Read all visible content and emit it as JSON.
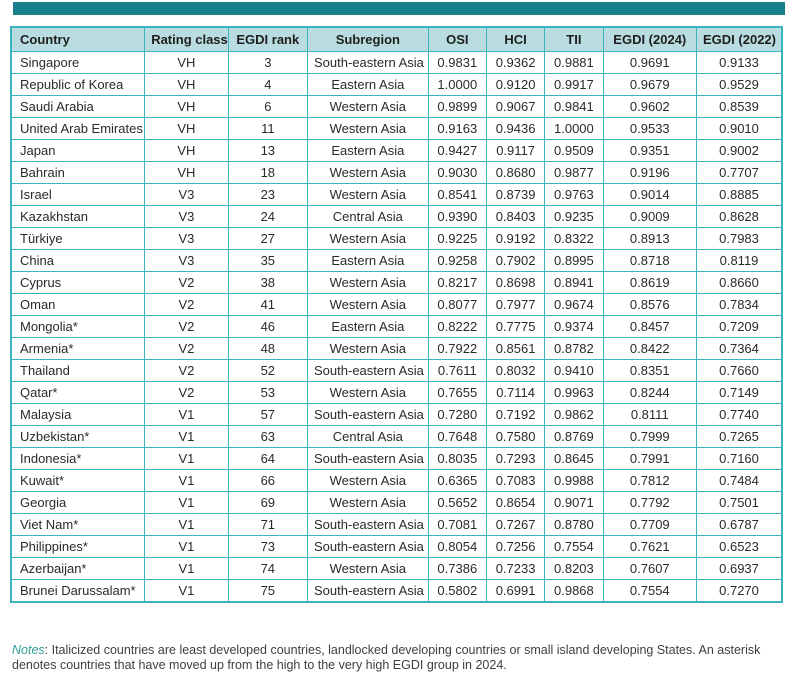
{
  "accent_color": "#18808b",
  "border_color": "#3cb4bf",
  "header_bg_color": "#b8dcdf",
  "table": {
    "columns": [
      {
        "key": "country",
        "label": "Country",
        "align": "left"
      },
      {
        "key": "rating",
        "label": "Rating class",
        "align": "center"
      },
      {
        "key": "rank",
        "label": "EGDI rank",
        "align": "center"
      },
      {
        "key": "subregion",
        "label": "Subregion",
        "align": "center"
      },
      {
        "key": "osi",
        "label": "OSI",
        "align": "center"
      },
      {
        "key": "hci",
        "label": "HCI",
        "align": "center"
      },
      {
        "key": "tii",
        "label": "TII",
        "align": "center"
      },
      {
        "key": "egdi24",
        "label": "EGDI (2024)",
        "align": "center"
      },
      {
        "key": "egdi22",
        "label": "EGDI (2022)",
        "align": "center"
      }
    ],
    "rows": [
      {
        "country": "Singapore",
        "rating": "VH",
        "rank": "3",
        "subregion": "South-eastern Asia",
        "osi": "0.9831",
        "hci": "0.9362",
        "tii": "0.9881",
        "egdi24": "0.9691",
        "egdi22": "0.9133"
      },
      {
        "country": "Republic of Korea",
        "rating": "VH",
        "rank": "4",
        "subregion": "Eastern Asia",
        "osi": "1.0000",
        "hci": "0.9120",
        "tii": "0.9917",
        "egdi24": "0.9679",
        "egdi22": "0.9529"
      },
      {
        "country": "Saudi Arabia",
        "rating": "VH",
        "rank": "6",
        "subregion": "Western Asia",
        "osi": "0.9899",
        "hci": "0.9067",
        "tii": "0.9841",
        "egdi24": "0.9602",
        "egdi22": "0.8539"
      },
      {
        "country": "United Arab Emirates",
        "rating": "VH",
        "rank": "11",
        "subregion": "Western Asia",
        "osi": "0.9163",
        "hci": "0.9436",
        "tii": "1.0000",
        "egdi24": "0.9533",
        "egdi22": "0.9010"
      },
      {
        "country": "Japan",
        "rating": "VH",
        "rank": "13",
        "subregion": "Eastern Asia",
        "osi": "0.9427",
        "hci": "0.9117",
        "tii": "0.9509",
        "egdi24": "0.9351",
        "egdi22": "0.9002"
      },
      {
        "country": "Bahrain",
        "rating": "VH",
        "rank": "18",
        "subregion": "Western Asia",
        "osi": "0.9030",
        "hci": "0.8680",
        "tii": "0.9877",
        "egdi24": "0.9196",
        "egdi22": "0.7707"
      },
      {
        "country": "Israel",
        "rating": "V3",
        "rank": "23",
        "subregion": "Western Asia",
        "osi": "0.8541",
        "hci": "0.8739",
        "tii": "0.9763",
        "egdi24": "0.9014",
        "egdi22": "0.8885"
      },
      {
        "country": "Kazakhstan",
        "rating": "V3",
        "rank": "24",
        "subregion": "Central Asia",
        "osi": "0.9390",
        "hci": "0.8403",
        "tii": "0.9235",
        "egdi24": "0.9009",
        "egdi22": "0.8628"
      },
      {
        "country": "Türkiye",
        "rating": "V3",
        "rank": "27",
        "subregion": "Western Asia",
        "osi": "0.9225",
        "hci": "0.9192",
        "tii": "0.8322",
        "egdi24": "0.8913",
        "egdi22": "0.7983"
      },
      {
        "country": "China",
        "rating": "V3",
        "rank": "35",
        "subregion": "Eastern Asia",
        "osi": "0.9258",
        "hci": "0.7902",
        "tii": "0.8995",
        "egdi24": "0.8718",
        "egdi22": "0.8119"
      },
      {
        "country": "Cyprus",
        "rating": "V2",
        "rank": "38",
        "subregion": "Western Asia",
        "osi": "0.8217",
        "hci": "0.8698",
        "tii": "0.8941",
        "egdi24": "0.8619",
        "egdi22": "0.8660"
      },
      {
        "country": "Oman",
        "rating": "V2",
        "rank": "41",
        "subregion": "Western Asia",
        "osi": "0.8077",
        "hci": "0.7977",
        "tii": "0.9674",
        "egdi24": "0.8576",
        "egdi22": "0.7834"
      },
      {
        "country": "Mongolia*",
        "rating": "V2",
        "rank": "46",
        "subregion": "Eastern Asia",
        "osi": "0.8222",
        "hci": "0.7775",
        "tii": "0.9374",
        "egdi24": "0.8457",
        "egdi22": "0.7209"
      },
      {
        "country": "Armenia*",
        "rating": "V2",
        "rank": "48",
        "subregion": "Western Asia",
        "osi": "0.7922",
        "hci": "0.8561",
        "tii": "0.8782",
        "egdi24": "0.8422",
        "egdi22": "0.7364"
      },
      {
        "country": "Thailand",
        "rating": "V2",
        "rank": "52",
        "subregion": "South-eastern Asia",
        "osi": "0.7611",
        "hci": "0.8032",
        "tii": "0.9410",
        "egdi24": "0.8351",
        "egdi22": "0.7660"
      },
      {
        "country": "Qatar*",
        "rating": "V2",
        "rank": "53",
        "subregion": "Western Asia",
        "osi": "0.7655",
        "hci": "0.7114",
        "tii": "0.9963",
        "egdi24": "0.8244",
        "egdi22": "0.7149"
      },
      {
        "country": "Malaysia",
        "rating": "V1",
        "rank": "57",
        "subregion": "South-eastern Asia",
        "osi": "0.7280",
        "hci": "0.7192",
        "tii": "0.9862",
        "egdi24": "0.8111",
        "egdi22": "0.7740"
      },
      {
        "country": "Uzbekistan*",
        "rating": "V1",
        "rank": "63",
        "subregion": "Central Asia",
        "osi": "0.7648",
        "hci": "0.7580",
        "tii": "0.8769",
        "egdi24": "0.7999",
        "egdi22": "0.7265"
      },
      {
        "country": "Indonesia*",
        "rating": "V1",
        "rank": "64",
        "subregion": "South-eastern Asia",
        "osi": "0.8035",
        "hci": "0.7293",
        "tii": "0.8645",
        "egdi24": "0.7991",
        "egdi22": "0.7160"
      },
      {
        "country": "Kuwait*",
        "rating": "V1",
        "rank": "66",
        "subregion": "Western Asia",
        "osi": "0.6365",
        "hci": "0.7083",
        "tii": "0.9988",
        "egdi24": "0.7812",
        "egdi22": "0.7484"
      },
      {
        "country": "Georgia",
        "rating": "V1",
        "rank": "69",
        "subregion": "Western Asia",
        "osi": "0.5652",
        "hci": "0.8654",
        "tii": "0.9071",
        "egdi24": "0.7792",
        "egdi22": "0.7501"
      },
      {
        "country": "Viet Nam*",
        "rating": "V1",
        "rank": "71",
        "subregion": "South-eastern Asia",
        "osi": "0.7081",
        "hci": "0.7267",
        "tii": "0.8780",
        "egdi24": "0.7709",
        "egdi22": "0.6787"
      },
      {
        "country": "Philippines*",
        "rating": "V1",
        "rank": "73",
        "subregion": "South-eastern Asia",
        "osi": "0.8054",
        "hci": "0.7256",
        "tii": "0.7554",
        "egdi24": "0.7621",
        "egdi22": "0.6523"
      },
      {
        "country": "Azerbaijan*",
        "rating": "V1",
        "rank": "74",
        "subregion": "Western Asia",
        "osi": "0.7386",
        "hci": "0.7233",
        "tii": "0.8203",
        "egdi24": "0.7607",
        "egdi22": "0.6937"
      },
      {
        "country": "Brunei Darussalam*",
        "rating": "V1",
        "rank": "75",
        "subregion": "South-eastern Asia",
        "osi": "0.5802",
        "hci": "0.6991",
        "tii": "0.9868",
        "egdi24": "0.7554",
        "egdi22": "0.7270"
      }
    ]
  },
  "notes": {
    "label": "Notes",
    "text": ": Italicized countries are least developed countries, landlocked developing countries or small island developing States. An asterisk denotes countries that have moved up from the high to the very high EGDI group in 2024."
  }
}
